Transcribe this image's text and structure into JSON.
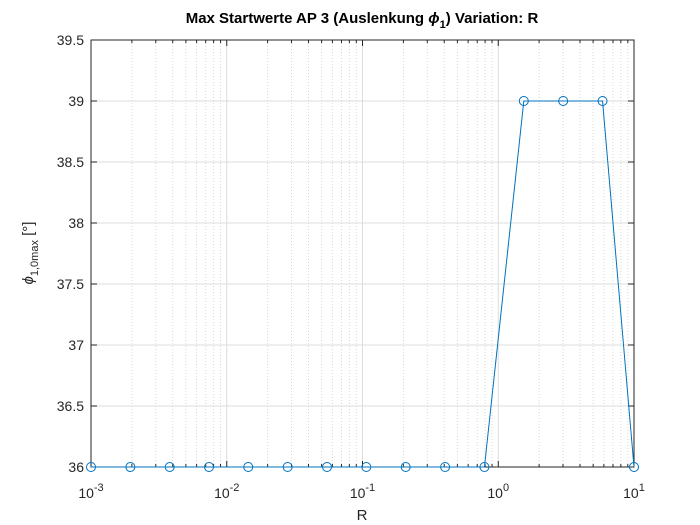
{
  "chart_data": {
    "type": "line",
    "title": {
      "prefix": "Max Startwerte AP 3 (Auslenkung ",
      "symbol": "ϕ",
      "subscript": "1",
      "suffix": ")  Variation: R"
    },
    "xlabel": "R",
    "ylabel": {
      "symbol": "ϕ",
      "subscript": "1,0max",
      "unit": " [°]"
    },
    "xscale": "log",
    "xlim": [
      0.001,
      10
    ],
    "ylim": [
      36,
      39.5
    ],
    "x_ticks": [
      {
        "value": 0.001,
        "base": "10",
        "exp": "-3"
      },
      {
        "value": 0.01,
        "base": "10",
        "exp": "-2"
      },
      {
        "value": 0.1,
        "base": "10",
        "exp": "-1"
      },
      {
        "value": 1,
        "base": "10",
        "exp": "0"
      },
      {
        "value": 10,
        "base": "10",
        "exp": "1"
      }
    ],
    "y_ticks": [
      "36",
      "36.5",
      "37",
      "37.5",
      "38",
      "38.5",
      "39",
      "39.5"
    ],
    "grid": true,
    "minor_grid": true,
    "series": [
      {
        "marker": "circle",
        "color": "#0072BD",
        "x": [
          0.001,
          0.00195,
          0.0038,
          0.0074,
          0.0144,
          0.0281,
          0.0548,
          0.1067,
          0.2081,
          0.4058,
          0.7912,
          1.5427,
          3.008,
          5.865,
          10
        ],
        "y": [
          36,
          36,
          36,
          36,
          36,
          36,
          36,
          36,
          36,
          36,
          36,
          39,
          39,
          39,
          36
        ]
      }
    ]
  }
}
